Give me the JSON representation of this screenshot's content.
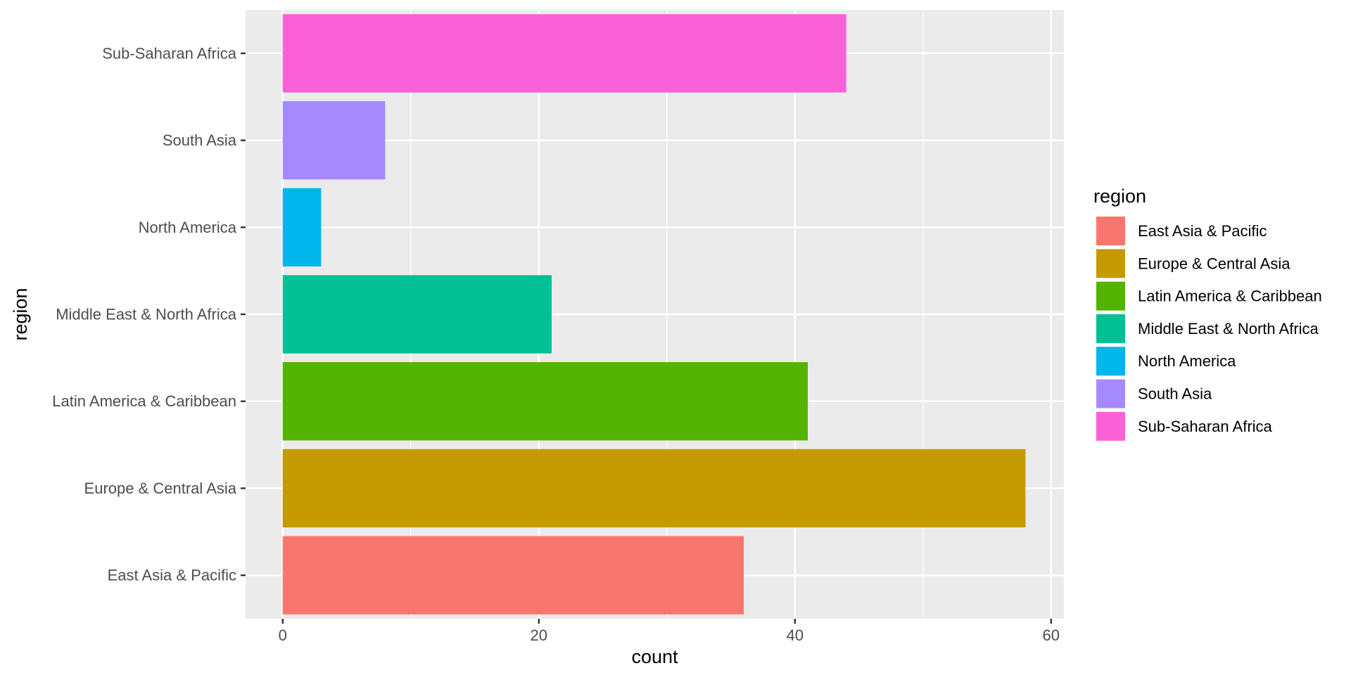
{
  "chart_data": {
    "type": "bar",
    "orientation": "horizontal",
    "categories": [
      "East Asia & Pacific",
      "Europe & Central Asia",
      "Latin America & Caribbean",
      "Middle East & North Africa",
      "North America",
      "South Asia",
      "Sub-Saharan Africa"
    ],
    "values": [
      36,
      58,
      41,
      21,
      3,
      8,
      44
    ],
    "colors": [
      "#F8766D",
      "#C49A00",
      "#53B400",
      "#00C094",
      "#00B6EB",
      "#A58AFF",
      "#FB61D7"
    ],
    "title": "",
    "xlabel": "count",
    "ylabel": "region",
    "xlim": [
      -2.9,
      61
    ],
    "xticks": [
      0,
      20,
      40,
      60
    ],
    "grid": true,
    "panel_background": "#EBEBEB",
    "legend": {
      "title": "region",
      "placement": "right",
      "entries": [
        "East Asia & Pacific",
        "Europe & Central Asia",
        "Latin America & Caribbean",
        "Middle East & North Africa",
        "North America",
        "South Asia",
        "Sub-Saharan Africa"
      ]
    }
  }
}
